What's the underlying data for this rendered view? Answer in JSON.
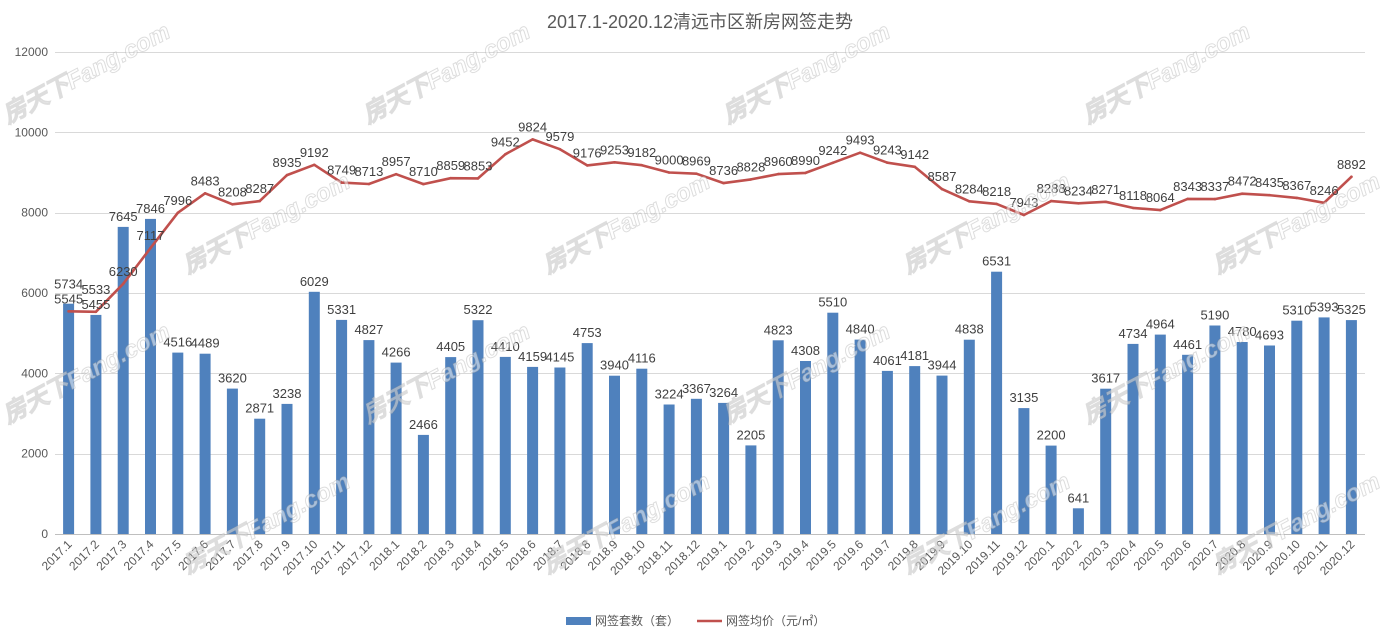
{
  "chart_data": {
    "type": "bar",
    "title": "2017.1-2020.12清远市区新房网签走势",
    "categories": [
      "2017.1",
      "2017.2",
      "2017.3",
      "2017.4",
      "2017.5",
      "2017.6",
      "2017.7",
      "2017.8",
      "2017.9",
      "2017.10",
      "2017.11",
      "2017.12",
      "2018.1",
      "2018.2",
      "2018.3",
      "2018.4",
      "2018.5",
      "2018.6",
      "2018.7",
      "2018.8",
      "2018.9",
      "2018.10",
      "2018.11",
      "2018.12",
      "2019.1",
      "2019.2",
      "2019.3",
      "2019.4",
      "2019.5",
      "2019.6",
      "2019.7",
      "2019.8",
      "2019.9",
      "2019.10",
      "2019.11",
      "2019.12",
      "2020.1",
      "2020.2",
      "2020.3",
      "2020.4",
      "2020.5",
      "2020.6",
      "2020.7",
      "2020.8",
      "2020.9",
      "2020.10",
      "2020.11",
      "2020.12"
    ],
    "series": [
      {
        "name": "网签套数（套）",
        "type": "bar",
        "color": "#4F81BD",
        "values": [
          5734,
          5455,
          7645,
          7846,
          4516,
          4489,
          3620,
          2871,
          3238,
          6029,
          5331,
          4827,
          4266,
          2466,
          4405,
          5322,
          4410,
          4159,
          4145,
          4753,
          3940,
          4116,
          3224,
          3367,
          3264,
          2205,
          4823,
          4308,
          5510,
          4840,
          4061,
          4181,
          3944,
          4838,
          6531,
          3135,
          2200,
          641,
          3617,
          4734,
          4964,
          4461,
          5190,
          4780,
          4693,
          5310,
          5393,
          5325
        ]
      },
      {
        "name": "网签均价（元/㎡）",
        "type": "line",
        "color": "#C0504D",
        "values": [
          5545,
          5533,
          6230,
          7117,
          7996,
          8483,
          8208,
          8287,
          8935,
          9192,
          8749,
          8713,
          8957,
          8710,
          8859,
          8853,
          9452,
          9824,
          9579,
          9176,
          9253,
          9182,
          9000,
          8969,
          8736,
          8828,
          8960,
          8990,
          9242,
          9493,
          9243,
          9142,
          8587,
          8284,
          8218,
          7943,
          8288,
          8234,
          8271,
          8118,
          8064,
          8343,
          8337,
          8472,
          8435,
          8367,
          8246,
          8892
        ]
      }
    ],
    "ylim": [
      0,
      12000
    ],
    "yticks": [
      0,
      2000,
      4000,
      6000,
      8000,
      10000,
      12000
    ],
    "grid": true,
    "legend": "bottom",
    "data_labels": true
  },
  "watermark": {
    "text": "房天下Fang.com"
  }
}
